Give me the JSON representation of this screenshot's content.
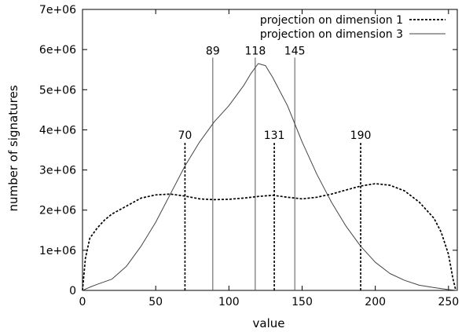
{
  "chart_data": {
    "type": "line",
    "title": "",
    "xlabel": "value",
    "ylabel": "number of signatures",
    "xlim": [
      0,
      256
    ],
    "ylim": [
      0,
      7000000
    ],
    "xticks": [
      0,
      50,
      100,
      150,
      200,
      250
    ],
    "xtick_labels": [
      "0",
      "50",
      "100",
      "150",
      "200",
      "250"
    ],
    "yticks": [
      0,
      1000000,
      2000000,
      3000000,
      4000000,
      5000000,
      6000000,
      7000000
    ],
    "ytick_labels": [
      "0",
      "1e+06",
      "2e+06",
      "3e+06",
      "4e+06",
      "5e+06",
      "6e+06",
      "7e+06"
    ],
    "grid": false,
    "legend_position": "top-right",
    "series": [
      {
        "name": "projection on dimension 1",
        "style": "dashed",
        "color": "#000000",
        "x": [
          0,
          2,
          5,
          10,
          15,
          20,
          30,
          40,
          50,
          60,
          70,
          80,
          90,
          100,
          110,
          120,
          130,
          140,
          150,
          160,
          170,
          180,
          190,
          200,
          210,
          220,
          230,
          240,
          245,
          250,
          253,
          255
        ],
        "y": [
          0,
          800000,
          1300000,
          1550000,
          1750000,
          1900000,
          2100000,
          2300000,
          2380000,
          2400000,
          2350000,
          2280000,
          2260000,
          2270000,
          2300000,
          2340000,
          2370000,
          2320000,
          2280000,
          2320000,
          2400000,
          2500000,
          2600000,
          2660000,
          2620000,
          2480000,
          2200000,
          1800000,
          1450000,
          900000,
          300000,
          0
        ]
      },
      {
        "name": "projection on dimension 3",
        "style": "solid",
        "color": "#444444",
        "x": [
          0,
          5,
          10,
          20,
          30,
          40,
          50,
          60,
          70,
          80,
          90,
          100,
          110,
          115,
          120,
          125,
          130,
          140,
          150,
          160,
          170,
          180,
          190,
          200,
          210,
          220,
          230,
          240,
          250,
          256
        ],
        "y": [
          0,
          80000,
          150000,
          280000,
          600000,
          1100000,
          1700000,
          2400000,
          3100000,
          3700000,
          4200000,
          4600000,
          5100000,
          5400000,
          5650000,
          5600000,
          5300000,
          4600000,
          3700000,
          2900000,
          2200000,
          1600000,
          1100000,
          700000,
          420000,
          250000,
          130000,
          70000,
          20000,
          0
        ]
      }
    ],
    "annotations": [
      {
        "label": "70",
        "x": 70,
        "y": 3700000,
        "style": "dashed"
      },
      {
        "label": "89",
        "x": 89,
        "y": 5800000,
        "style": "solid"
      },
      {
        "label": "118",
        "x": 118,
        "y": 5800000,
        "style": "solid"
      },
      {
        "label": "131",
        "x": 131,
        "y": 3700000,
        "style": "dashed"
      },
      {
        "label": "145",
        "x": 145,
        "y": 5800000,
        "style": "solid"
      },
      {
        "label": "190",
        "x": 190,
        "y": 3700000,
        "style": "dashed"
      }
    ]
  }
}
